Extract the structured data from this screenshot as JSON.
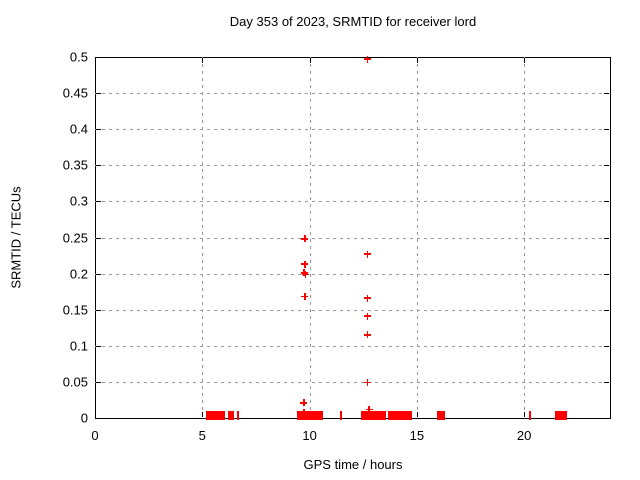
{
  "chart_data": {
    "type": "scatter",
    "title": "Day 353 of 2023, SRMTID for receiver lord",
    "xlabel": "GPS time / hours",
    "ylabel": "SRMTID / TECUs",
    "xlim": [
      0,
      24
    ],
    "ylim": [
      0,
      0.5
    ],
    "xtick_values": [
      0,
      5,
      10,
      15,
      20
    ],
    "xtick_labels": [
      "0",
      "5",
      "10",
      "15",
      "20"
    ],
    "ytick_values": [
      0,
      0.05,
      0.1,
      0.15,
      0.2,
      0.25,
      0.3,
      0.35,
      0.4,
      0.45,
      0.5
    ],
    "ytick_labels": [
      "0",
      "0.05",
      "0.1",
      "0.15",
      "0.2",
      "0.25",
      "0.3",
      "0.35",
      "0.4",
      "0.45",
      "0.5"
    ],
    "grid": true,
    "legend": "none",
    "marker": "plus",
    "marker_color": "#ff0000",
    "grid_color": "#9a9a9a",
    "axis_color": "#000000",
    "background_color": "#ffffff",
    "points": [
      [
        9.78,
        0.248
      ],
      [
        9.78,
        0.213
      ],
      [
        9.75,
        0.201
      ],
      [
        9.81,
        0.199
      ],
      [
        9.78,
        0.168
      ],
      [
        9.73,
        0.021
      ],
      [
        9.74,
        0.007
      ],
      [
        12.7,
        0.497
      ],
      [
        12.7,
        0.227
      ],
      [
        12.7,
        0.166
      ],
      [
        12.7,
        0.141
      ],
      [
        12.7,
        0.115
      ],
      [
        12.7,
        0.049
      ],
      [
        12.77,
        0.012
      ]
    ],
    "zero_value_clusters": [
      [
        5.17,
        6.06
      ],
      [
        6.21,
        6.48
      ],
      [
        6.6,
        6.66
      ],
      [
        9.41,
        10.62
      ],
      [
        11.44,
        11.5
      ],
      [
        12.39,
        13.56
      ],
      [
        13.65,
        14.77
      ],
      [
        15.94,
        16.31
      ],
      [
        20.22,
        20.28
      ],
      [
        21.43,
        21.99
      ]
    ]
  }
}
